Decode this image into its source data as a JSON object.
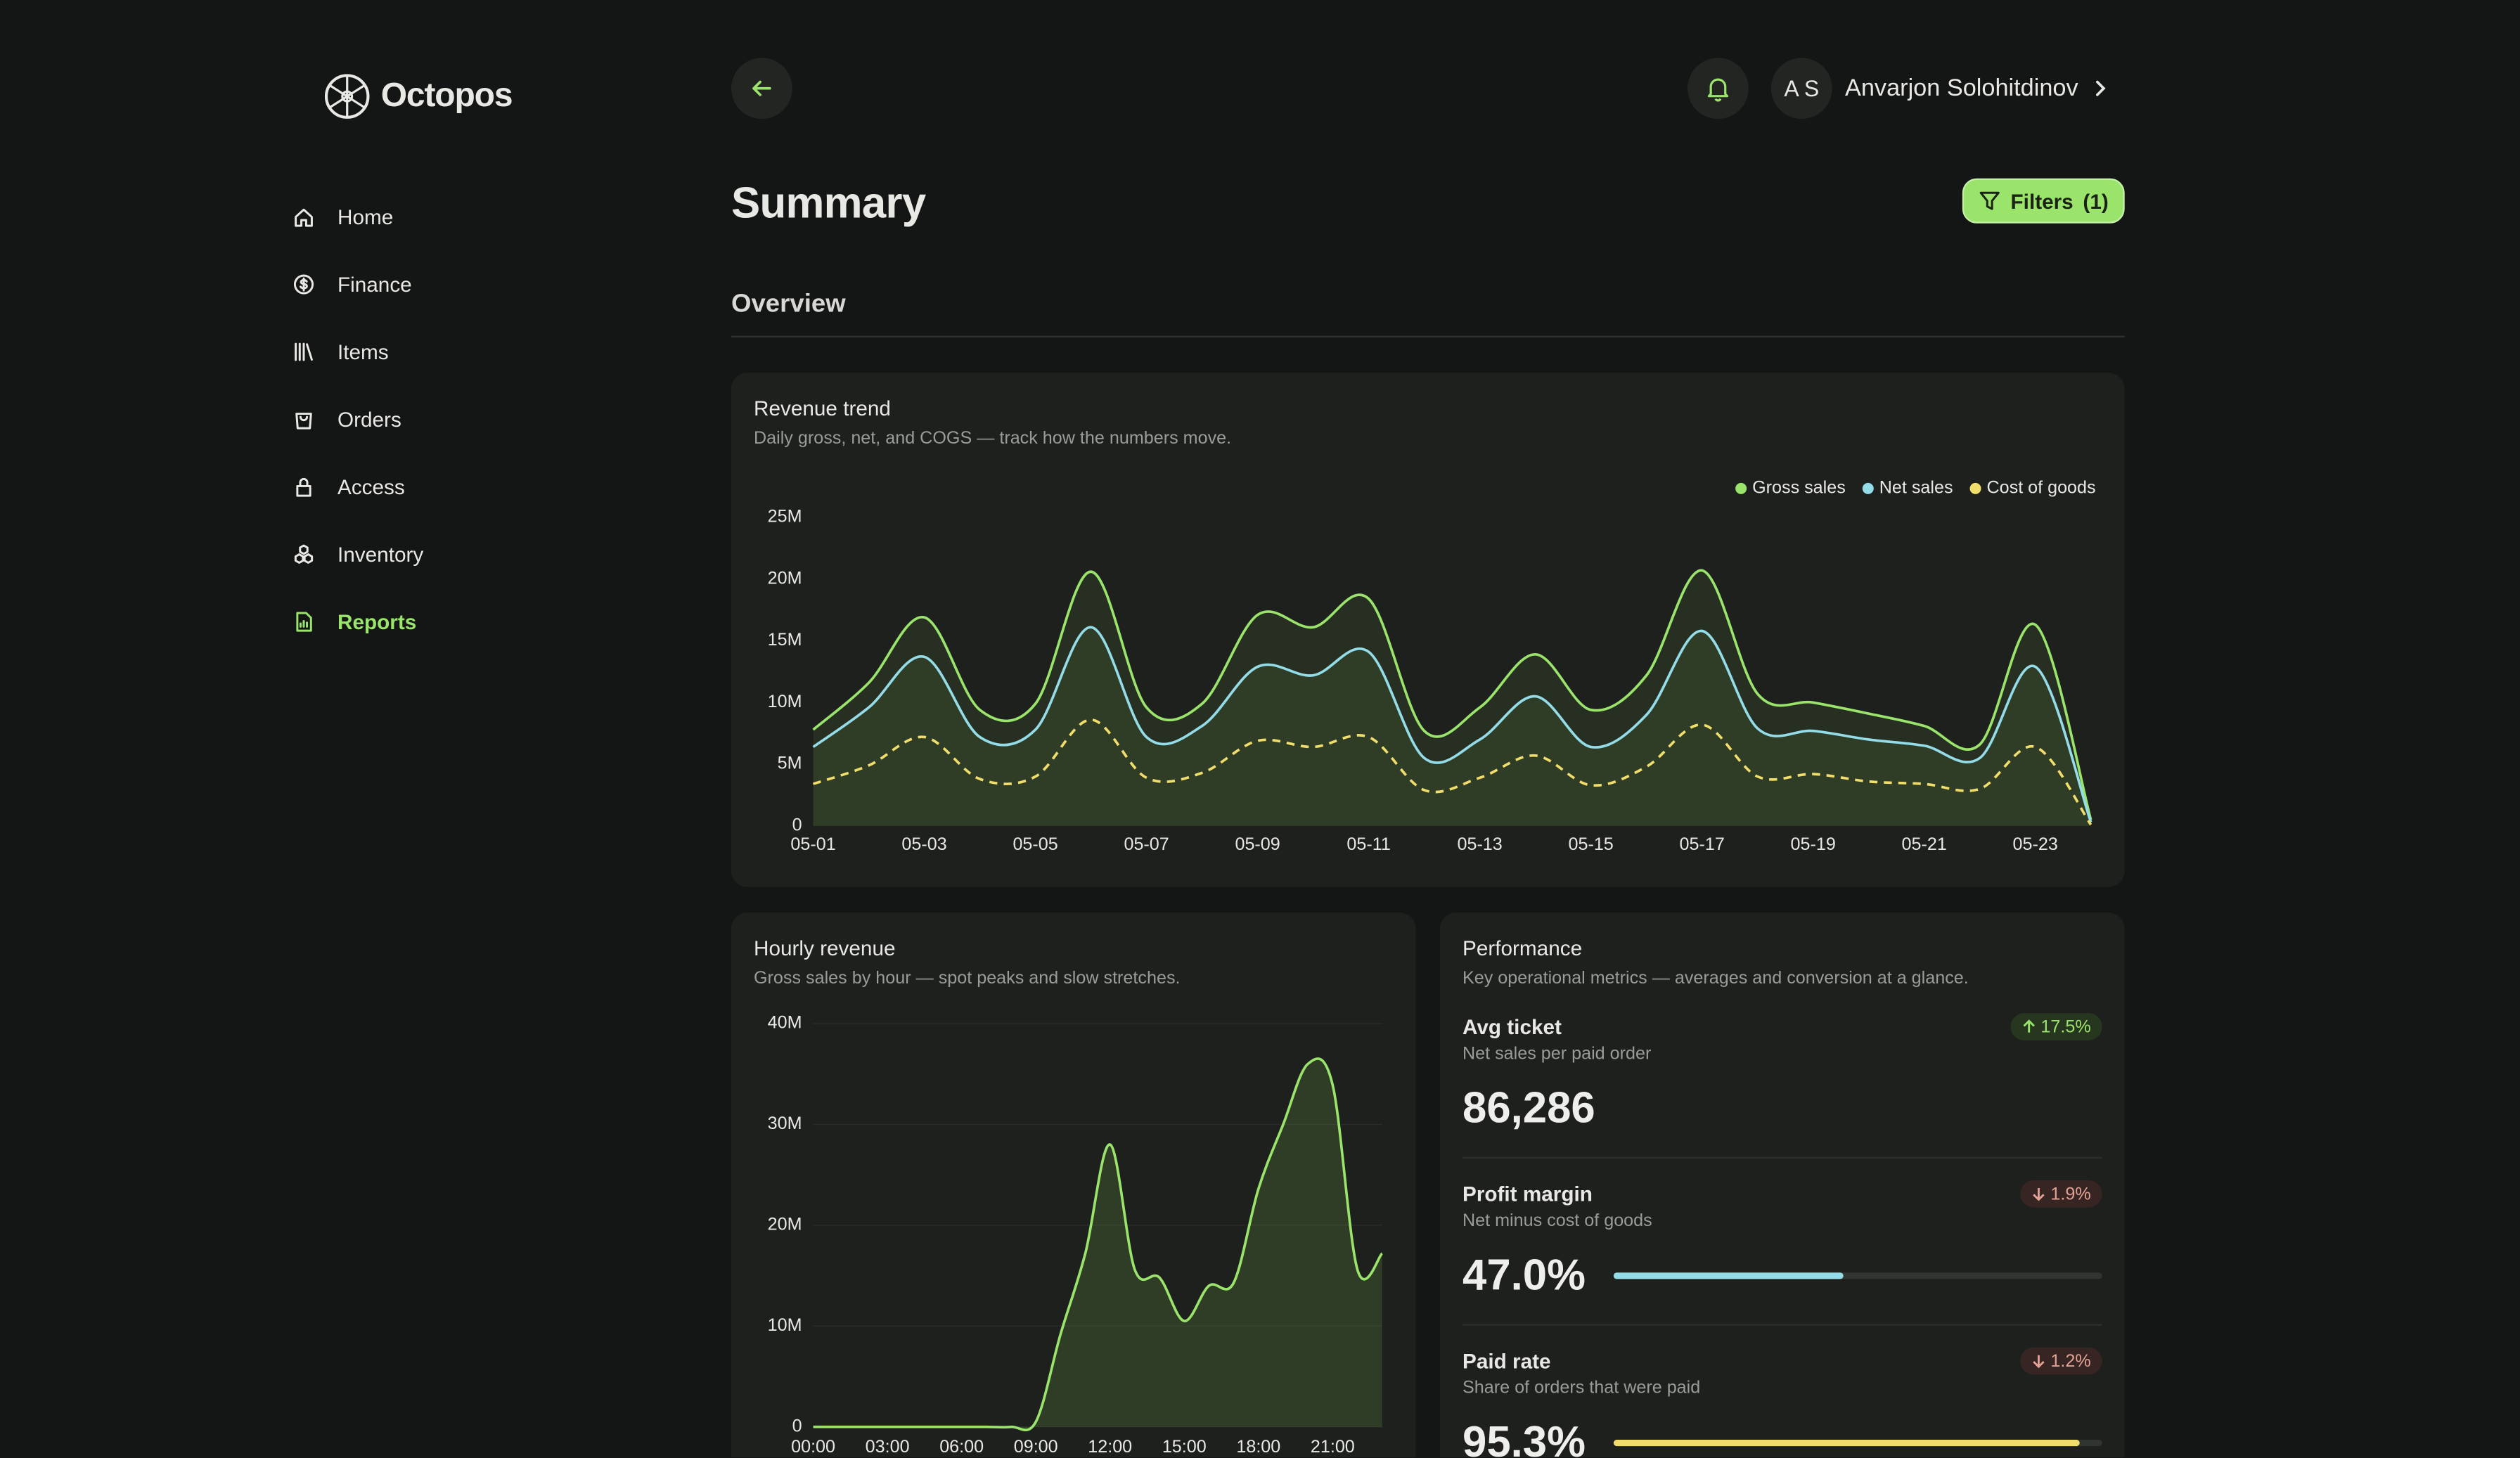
{
  "sidebar": {
    "brand": "Octopos",
    "nav": [
      "Home",
      "Finance",
      "Items",
      "Orders",
      "Access",
      "Inventory",
      "Reports"
    ],
    "active": "Reports"
  },
  "header": {
    "initials": "A S",
    "user_name": "Anvarjon Solohitdinov",
    "page_title": "Summary",
    "filter_label": "Filters",
    "filter_count": "(1)",
    "section": "Overview"
  },
  "chart_data": [
    {
      "type": "line",
      "title": "Revenue trend",
      "subtitle": "Daily gross, net, and COGS — track how the numbers move.",
      "categories": [
        "05-01",
        null,
        "05-03",
        null,
        "05-05",
        null,
        "05-07",
        null,
        "05-09",
        null,
        "05-11",
        null,
        "05-13",
        null,
        "05-15",
        null,
        "05-17",
        null,
        "05-19",
        null,
        "05-21",
        null,
        "05-23",
        null
      ],
      "series": [
        {
          "name": "Gross sales",
          "color": "#9be46c",
          "style": "solid",
          "area": true,
          "values": [
            7800000,
            11600000,
            16900000,
            9400000,
            9900000,
            20600000,
            9600000,
            9900000,
            17100000,
            16100000,
            18400000,
            7700000,
            9600000,
            13900000,
            9400000,
            12200000,
            20700000,
            10700000,
            10000000,
            9100000,
            8100000,
            6600000,
            16300000,
            500000
          ]
        },
        {
          "name": "Net sales",
          "color": "#93dce8",
          "style": "solid",
          "area": true,
          "values": [
            6400000,
            9600000,
            13700000,
            7200000,
            7800000,
            16100000,
            7200000,
            8100000,
            12900000,
            12200000,
            14100000,
            5500000,
            7000000,
            10500000,
            6400000,
            9000000,
            15800000,
            7900000,
            7700000,
            7000000,
            6500000,
            5500000,
            12900000,
            300000
          ]
        },
        {
          "name": "Cost of goods",
          "color": "#f0dd6c",
          "style": "dashed",
          "area": false,
          "values": [
            3400000,
            4900000,
            7200000,
            3800000,
            4000000,
            8600000,
            3900000,
            4300000,
            6900000,
            6400000,
            7200000,
            2900000,
            3900000,
            5700000,
            3300000,
            4800000,
            8200000,
            4000000,
            4200000,
            3600000,
            3400000,
            3000000,
            6400000,
            100000
          ]
        }
      ],
      "ylim": [
        0,
        25000000
      ],
      "yticks": [
        0,
        {
          "value": 5000000,
          "label": "5M"
        },
        {
          "value": 10000000,
          "label": "10M"
        },
        {
          "value": 15000000,
          "label": "15M"
        },
        {
          "value": 20000000,
          "label": "20M"
        },
        {
          "value": 25000000,
          "label": "25M"
        }
      ],
      "grid": false,
      "legend": "top-right"
    },
    {
      "type": "area",
      "title": "Hourly revenue",
      "subtitle": "Gross sales by hour — spot peaks and slow stretches.",
      "categories": [
        "00:00",
        null,
        null,
        "03:00",
        null,
        null,
        "06:00",
        null,
        null,
        "09:00",
        null,
        null,
        "12:00",
        null,
        null,
        "15:00",
        null,
        null,
        "18:00",
        null,
        null,
        "21:00",
        null,
        null
      ],
      "values": [
        0,
        0,
        0,
        0,
        0,
        0,
        0,
        0,
        0,
        500000,
        9200000,
        17200000,
        28000000,
        15600000,
        14800000,
        10500000,
        14000000,
        14300000,
        23600000,
        30000000,
        36000000,
        33900000,
        15600000,
        17200000
      ],
      "color": "#9be46c",
      "ylim": [
        0,
        40000000
      ],
      "yticks": [
        0,
        {
          "value": 10000000,
          "label": "10M"
        },
        {
          "value": 20000000,
          "label": "20M"
        },
        {
          "value": 30000000,
          "label": "30M"
        },
        {
          "value": 40000000,
          "label": "40M"
        }
      ],
      "grid": true
    }
  ],
  "performance": {
    "title": "Performance",
    "subtitle": "Key operational metrics — averages and conversion at a glance.",
    "metrics": [
      {
        "title": "Avg ticket",
        "subtitle": "Net sales per paid order",
        "value": 86286,
        "value_label": "86,286",
        "change": 17.5,
        "change_label": "17.5%",
        "trend": "up"
      },
      {
        "title": "Profit margin",
        "subtitle": "Net minus cost of goods",
        "value": 47.0,
        "value_label": "47.0%",
        "change": 1.9,
        "change_label": "1.9%",
        "trend": "down",
        "bar": true,
        "max": 100,
        "color": "#93dce8"
      },
      {
        "title": "Paid rate",
        "subtitle": "Share of orders that were paid",
        "value": 95.3,
        "value_label": "95.3%",
        "change": 1.2,
        "change_label": "1.2%",
        "trend": "down",
        "bar": true,
        "max": 100,
        "color": "#f0dd6c"
      }
    ]
  }
}
